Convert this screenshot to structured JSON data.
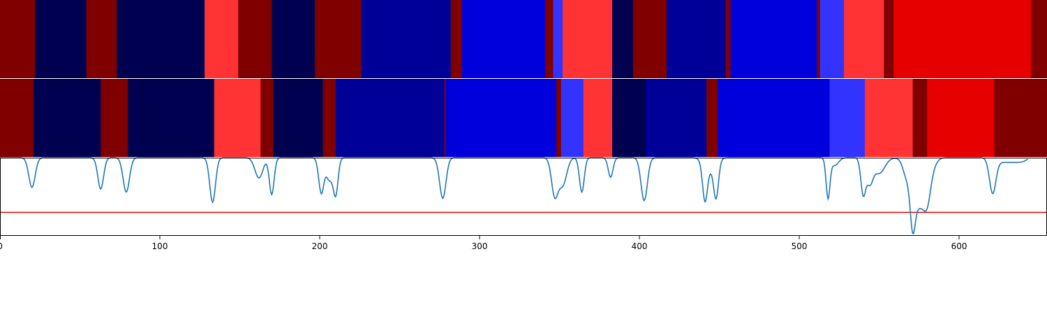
{
  "chart_data": {
    "type": "heatmap",
    "title": "",
    "xlabel": "",
    "ylabel": "",
    "xlim": [
      0,
      655
    ],
    "x_ticks": [
      0,
      100,
      200,
      300,
      400,
      500,
      600
    ],
    "x_tick_labels": [
      "0",
      "100",
      "200",
      "300",
      "400",
      "500",
      "600"
    ],
    "rows": [
      {
        "segments": [
          {
            "start": 0,
            "end": 22,
            "color": "#800000"
          },
          {
            "start": 22,
            "end": 54,
            "color": "#000050"
          },
          {
            "start": 54,
            "end": 73,
            "color": "#800000"
          },
          {
            "start": 73,
            "end": 128,
            "color": "#000050"
          },
          {
            "start": 128,
            "end": 149,
            "color": "#ff3333"
          },
          {
            "start": 149,
            "end": 170,
            "color": "#800000"
          },
          {
            "start": 170,
            "end": 197,
            "color": "#000050"
          },
          {
            "start": 197,
            "end": 226,
            "color": "#800000"
          },
          {
            "start": 226,
            "end": 282,
            "color": "#000099"
          },
          {
            "start": 282,
            "end": 289,
            "color": "#800000"
          },
          {
            "start": 289,
            "end": 341,
            "color": "#0000dd"
          },
          {
            "start": 341,
            "end": 346,
            "color": "#800000"
          },
          {
            "start": 346,
            "end": 352,
            "color": "#3333ff"
          },
          {
            "start": 352,
            "end": 383,
            "color": "#ff3333"
          },
          {
            "start": 383,
            "end": 396,
            "color": "#000050"
          },
          {
            "start": 396,
            "end": 417,
            "color": "#800000"
          },
          {
            "start": 417,
            "end": 454,
            "color": "#000099"
          },
          {
            "start": 454,
            "end": 457,
            "color": "#800000"
          },
          {
            "start": 457,
            "end": 511,
            "color": "#0000dd"
          },
          {
            "start": 511,
            "end": 513,
            "color": "#800000"
          },
          {
            "start": 513,
            "end": 528,
            "color": "#3333ff"
          },
          {
            "start": 528,
            "end": 553,
            "color": "#ff3333"
          },
          {
            "start": 553,
            "end": 559,
            "color": "#800000"
          },
          {
            "start": 559,
            "end": 645,
            "color": "#e60000"
          },
          {
            "start": 645,
            "end": 655,
            "color": "#800000"
          }
        ]
      },
      {
        "segments": [
          {
            "start": 0,
            "end": 21,
            "color": "#800000"
          },
          {
            "start": 21,
            "end": 63,
            "color": "#000050"
          },
          {
            "start": 63,
            "end": 80,
            "color": "#800000"
          },
          {
            "start": 80,
            "end": 134,
            "color": "#000050"
          },
          {
            "start": 134,
            "end": 163,
            "color": "#ff3333"
          },
          {
            "start": 163,
            "end": 171,
            "color": "#800000"
          },
          {
            "start": 171,
            "end": 202,
            "color": "#000050"
          },
          {
            "start": 202,
            "end": 210,
            "color": "#800000"
          },
          {
            "start": 210,
            "end": 278,
            "color": "#000099"
          },
          {
            "start": 278,
            "end": 279,
            "color": "#800000"
          },
          {
            "start": 279,
            "end": 348,
            "color": "#0000dd"
          },
          {
            "start": 348,
            "end": 351,
            "color": "#800000"
          },
          {
            "start": 351,
            "end": 365,
            "color": "#3333ff"
          },
          {
            "start": 365,
            "end": 383,
            "color": "#ff3333"
          },
          {
            "start": 383,
            "end": 404,
            "color": "#000050"
          },
          {
            "start": 404,
            "end": 442,
            "color": "#000099"
          },
          {
            "start": 442,
            "end": 449,
            "color": "#800000"
          },
          {
            "start": 449,
            "end": 519,
            "color": "#0000dd"
          },
          {
            "start": 519,
            "end": 541,
            "color": "#3333ff"
          },
          {
            "start": 541,
            "end": 571,
            "color": "#ff3333"
          },
          {
            "start": 571,
            "end": 580,
            "color": "#800000"
          },
          {
            "start": 580,
            "end": 622,
            "color": "#e60000"
          },
          {
            "start": 622,
            "end": 655,
            "color": "#800000"
          }
        ]
      }
    ],
    "line_panel": {
      "ylim": [
        0,
        1
      ],
      "baseline": 1,
      "line_color": "#1f77b4",
      "threshold": 0.3,
      "threshold_color": "#e60000",
      "dips": [
        {
          "x": 20,
          "depth": 0.38,
          "width": 2.0
        },
        {
          "x": 63,
          "depth": 0.4,
          "width": 1.8
        },
        {
          "x": 79,
          "depth": 0.44,
          "width": 2.0
        },
        {
          "x": 133,
          "depth": 0.57,
          "width": 1.8
        },
        {
          "x": 162,
          "depth": 0.26,
          "width": 2.5
        },
        {
          "x": 170,
          "depth": 0.47,
          "width": 1.5
        },
        {
          "x": 201,
          "depth": 0.45,
          "width": 1.6
        },
        {
          "x": 206,
          "depth": 0.28,
          "width": 2.0
        },
        {
          "x": 210,
          "depth": 0.46,
          "width": 1.5
        },
        {
          "x": 277,
          "depth": 0.52,
          "width": 2.0
        },
        {
          "x": 347,
          "depth": 0.47,
          "width": 2.0
        },
        {
          "x": 352,
          "depth": 0.35,
          "width": 2.5
        },
        {
          "x": 364,
          "depth": 0.44,
          "width": 1.5
        },
        {
          "x": 382,
          "depth": 0.25,
          "width": 1.5
        },
        {
          "x": 403,
          "depth": 0.55,
          "width": 2.0
        },
        {
          "x": 441,
          "depth": 0.46,
          "width": 1.5
        },
        {
          "x": 444,
          "depth": 0.15,
          "width": 3.5
        },
        {
          "x": 448,
          "depth": 0.45,
          "width": 1.5
        },
        {
          "x": 518,
          "depth": 0.5,
          "width": 1.2
        },
        {
          "x": 522,
          "depth": 0.1,
          "width": 2.5
        },
        {
          "x": 540,
          "depth": 0.45,
          "width": 1.5
        },
        {
          "x": 544,
          "depth": 0.3,
          "width": 2.0
        },
        {
          "x": 550,
          "depth": 0.2,
          "width": 3.5
        },
        {
          "x": 571,
          "depth": 0.5,
          "width": 1.5
        },
        {
          "x": 575,
          "depth": 0.33,
          "width": 3.5
        },
        {
          "x": 580,
          "depth": 0.25,
          "width": 2.0
        },
        {
          "x": 621,
          "depth": 0.45,
          "width": 2.0
        }
      ],
      "level_shifts": [
        {
          "start": 565,
          "end": 583,
          "depth": 0.3
        },
        {
          "start": 583,
          "end": 586,
          "depth": 0.1
        },
        {
          "start": 623,
          "end": 642,
          "depth": 0.06
        }
      ]
    }
  }
}
